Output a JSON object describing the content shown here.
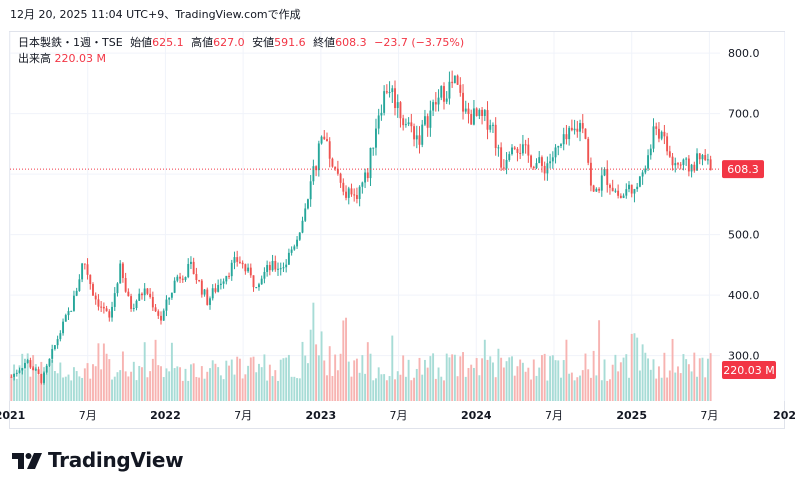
{
  "header": {
    "timestamp": "12月 20, 2025 11:04 UTC+9、TradingView.comで作成"
  },
  "legend": {
    "symbol": "日本製鉄・1週・TSE",
    "open_label": "始値",
    "open": "625.1",
    "high_label": "高値",
    "high": "627.0",
    "low_label": "安値",
    "low": "591.6",
    "close_label": "終値",
    "close": "608.3",
    "change": "−23.7 (−3.75%)",
    "volume_label": "出来高",
    "volume": "220.03 M"
  },
  "price_tag": "608.3",
  "volume_tag": "220.03 M",
  "brand": {
    "name": "TradingView"
  },
  "colors": {
    "up": "#26a69a",
    "down": "#ef5350",
    "up_vol": "#a7dcd6",
    "down_vol": "#f7b3b1",
    "grid": "#f0f3fa",
    "tag": "#f23645"
  },
  "chart_data": {
    "type": "candlestick",
    "interval": "weekly",
    "y_axis": {
      "side": "right",
      "ticks": [
        "800.0",
        "700.0",
        "600.0",
        "500.0",
        "400.0",
        "300.0"
      ],
      "range": [
        225,
        835
      ]
    },
    "x_axis": {
      "ticks": [
        "2021",
        "7月",
        "2022",
        "7月",
        "2023",
        "7月",
        "2024",
        "7月",
        "2025",
        "7月",
        "202"
      ],
      "start": "2021-01",
      "end": "2025-12"
    },
    "current_price": 608.3,
    "close_anchors": [
      {
        "t": 0.0,
        "v": 265
      },
      {
        "t": 0.3,
        "v": 292
      },
      {
        "t": 0.6,
        "v": 258
      },
      {
        "t": 0.9,
        "v": 330
      },
      {
        "t": 1.2,
        "v": 388
      },
      {
        "t": 1.4,
        "v": 460
      },
      {
        "t": 1.6,
        "v": 400
      },
      {
        "t": 1.9,
        "v": 360
      },
      {
        "t": 2.1,
        "v": 445
      },
      {
        "t": 2.3,
        "v": 380
      },
      {
        "t": 2.6,
        "v": 410
      },
      {
        "t": 2.9,
        "v": 360
      },
      {
        "t": 3.2,
        "v": 430
      },
      {
        "t": 3.5,
        "v": 445
      },
      {
        "t": 3.8,
        "v": 390
      },
      {
        "t": 4.1,
        "v": 430
      },
      {
        "t": 4.4,
        "v": 460
      },
      {
        "t": 4.7,
        "v": 420
      },
      {
        "t": 5.0,
        "v": 445
      },
      {
        "t": 5.3,
        "v": 450
      },
      {
        "t": 5.55,
        "v": 500
      },
      {
        "t": 5.75,
        "v": 560
      },
      {
        "t": 5.95,
        "v": 640
      },
      {
        "t": 6.05,
        "v": 660
      },
      {
        "t": 6.3,
        "v": 600
      },
      {
        "t": 6.6,
        "v": 555
      },
      {
        "t": 6.9,
        "v": 600
      },
      {
        "t": 7.1,
        "v": 700
      },
      {
        "t": 7.3,
        "v": 750
      },
      {
        "t": 7.6,
        "v": 690
      },
      {
        "t": 7.9,
        "v": 660
      },
      {
        "t": 8.1,
        "v": 700
      },
      {
        "t": 8.4,
        "v": 740
      },
      {
        "t": 8.6,
        "v": 750
      },
      {
        "t": 8.8,
        "v": 700
      },
      {
        "t": 9.1,
        "v": 690
      },
      {
        "t": 9.3,
        "v": 690
      },
      {
        "t": 9.5,
        "v": 610
      },
      {
        "t": 9.7,
        "v": 660
      },
      {
        "t": 10.0,
        "v": 630
      },
      {
        "t": 10.3,
        "v": 610
      },
      {
        "t": 10.6,
        "v": 640
      },
      {
        "t": 10.9,
        "v": 670
      },
      {
        "t": 11.1,
        "v": 690
      },
      {
        "t": 11.25,
        "v": 560
      },
      {
        "t": 11.5,
        "v": 600
      },
      {
        "t": 11.8,
        "v": 560
      },
      {
        "t": 12.1,
        "v": 590
      },
      {
        "t": 12.3,
        "v": 620
      },
      {
        "t": 12.5,
        "v": 680
      },
      {
        "t": 12.8,
        "v": 620
      },
      {
        "t": 13.1,
        "v": 610
      },
      {
        "t": 13.4,
        "v": 625
      },
      {
        "t": 13.55,
        "v": 608
      }
    ],
    "volume_range": [
      0,
      175
    ]
  }
}
